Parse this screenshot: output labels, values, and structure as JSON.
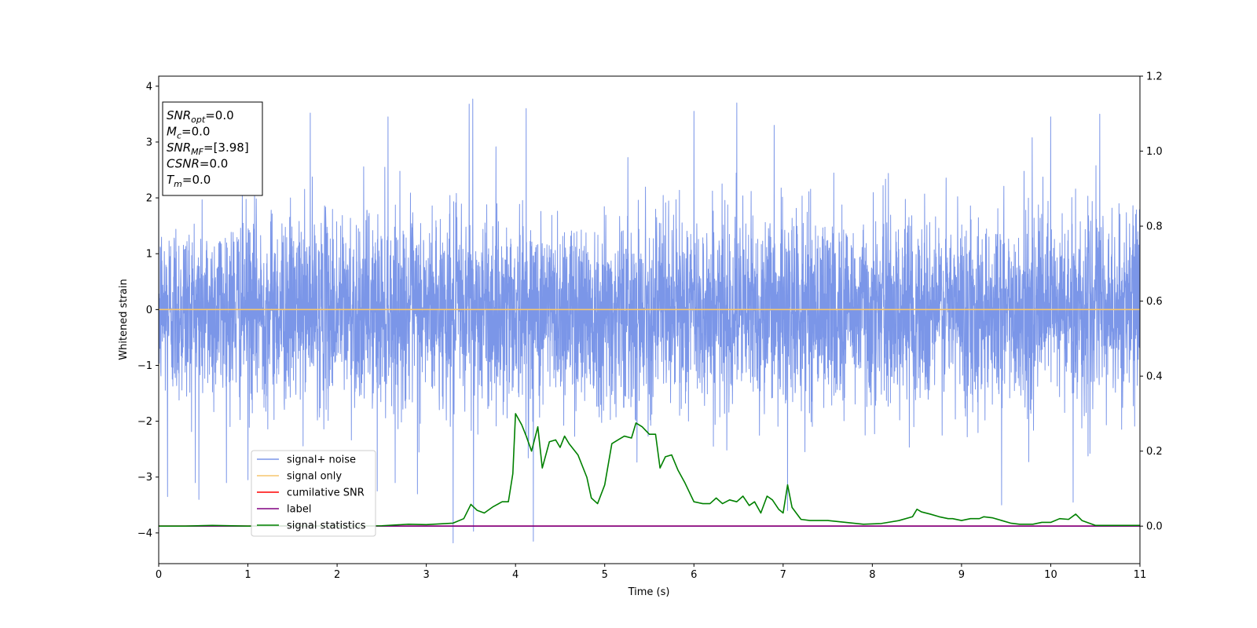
{
  "chart_data": {
    "type": "line",
    "xlabel": "Time (s)",
    "ylabel": "Whitened strain",
    "xlim": [
      0,
      11
    ],
    "ylim": [
      -4.55,
      4.18
    ],
    "y2lim": [
      -0.1,
      1.2
    ],
    "x_ticks": [
      "0",
      "1",
      "2",
      "3",
      "4",
      "5",
      "6",
      "7",
      "8",
      "9",
      "10",
      "11"
    ],
    "y_ticks": [
      "−4",
      "−3",
      "−2",
      "−1",
      "0",
      "1",
      "2",
      "3",
      "4"
    ],
    "y2_ticks": [
      "0.0",
      "0.2",
      "0.4",
      "0.6",
      "0.8",
      "1.0",
      "1.2"
    ],
    "grid": false,
    "legend_position": "lower-left",
    "info_box": {
      "lines": [
        {
          "main": "SNR",
          "sub": "opt",
          "value": "=0.0"
        },
        {
          "main": "M",
          "sub": "c",
          "value": "=0.0"
        },
        {
          "main": "SNR",
          "sub": "MF",
          "value": "=[3.98]"
        },
        {
          "main": "CSNR",
          "sub": "",
          "value": "=0.0"
        },
        {
          "main": "T",
          "sub": "m",
          "value": "=0.0"
        }
      ]
    },
    "series": [
      {
        "name": "signal+ noise",
        "color": "#7b96e8",
        "axis": "left",
        "description": "whitened noise, approx zero-mean, amplitude mostly within ±2.5 with spikes to ±3.8",
        "spikes": [
          {
            "x": 0.1,
            "y": -3.35
          },
          {
            "x": 0.45,
            "y": -3.4
          },
          {
            "x": 1.0,
            "y": -3.05
          },
          {
            "x": 1.7,
            "y": 3.52
          },
          {
            "x": 2.45,
            "y": -3.25
          },
          {
            "x": 2.57,
            "y": 3.45
          },
          {
            "x": 2.9,
            "y": -3.3
          },
          {
            "x": 3.3,
            "y": -4.18
          },
          {
            "x": 3.48,
            "y": 3.68
          },
          {
            "x": 3.52,
            "y": 3.77
          },
          {
            "x": 3.53,
            "y": -3.97
          },
          {
            "x": 4.2,
            "y": -4.15
          },
          {
            "x": 4.12,
            "y": 3.6
          },
          {
            "x": 6.0,
            "y": 3.55
          },
          {
            "x": 6.48,
            "y": 3.7
          },
          {
            "x": 6.9,
            "y": 3.3
          },
          {
            "x": 7.05,
            "y": -3.6
          },
          {
            "x": 9.45,
            "y": -3.5
          },
          {
            "x": 10.0,
            "y": 3.45
          },
          {
            "x": 10.25,
            "y": -3.45
          },
          {
            "x": 10.55,
            "y": 3.5
          }
        ]
      },
      {
        "name": "signal only",
        "color": "#f5c66f",
        "axis": "left",
        "x": [
          0,
          11
        ],
        "y": [
          0,
          0
        ]
      },
      {
        "name": "cumilative SNR",
        "color": "#ff0000",
        "axis": "right",
        "x": [
          0,
          11
        ],
        "y": [
          0,
          0
        ]
      },
      {
        "name": "label",
        "color": "#800080",
        "axis": "right",
        "x": [
          0,
          11
        ],
        "y": [
          0,
          0
        ]
      },
      {
        "name": "signal statistics",
        "color": "#008000",
        "axis": "right",
        "x": [
          0,
          0.3,
          0.6,
          1.0,
          1.5,
          2.0,
          2.5,
          2.8,
          3.0,
          3.3,
          3.42,
          3.5,
          3.57,
          3.65,
          3.75,
          3.85,
          3.92,
          3.97,
          4.0,
          4.07,
          4.12,
          4.18,
          4.25,
          4.3,
          4.38,
          4.45,
          4.5,
          4.55,
          4.6,
          4.7,
          4.8,
          4.85,
          4.92,
          5.0,
          5.08,
          5.15,
          5.22,
          5.3,
          5.35,
          5.42,
          5.5,
          5.57,
          5.62,
          5.68,
          5.75,
          5.82,
          5.9,
          6.0,
          6.1,
          6.18,
          6.25,
          6.32,
          6.4,
          6.48,
          6.55,
          6.62,
          6.68,
          6.75,
          6.82,
          6.88,
          6.95,
          7.0,
          7.05,
          7.1,
          7.2,
          7.3,
          7.5,
          7.7,
          7.9,
          8.1,
          8.3,
          8.45,
          8.5,
          8.55,
          8.65,
          8.75,
          8.85,
          8.9,
          9.0,
          9.1,
          9.2,
          9.25,
          9.35,
          9.45,
          9.55,
          9.65,
          9.8,
          9.9,
          10.0,
          10.1,
          10.2,
          10.28,
          10.35,
          10.5,
          10.7,
          11.0
        ],
        "y": [
          0.0,
          0.0,
          0.002,
          0.0,
          0.001,
          0.0,
          0.001,
          0.005,
          0.004,
          0.008,
          0.02,
          0.058,
          0.042,
          0.035,
          0.052,
          0.065,
          0.065,
          0.14,
          0.3,
          0.27,
          0.24,
          0.2,
          0.265,
          0.155,
          0.225,
          0.23,
          0.21,
          0.24,
          0.22,
          0.19,
          0.13,
          0.075,
          0.06,
          0.11,
          0.22,
          0.23,
          0.24,
          0.235,
          0.275,
          0.265,
          0.245,
          0.245,
          0.155,
          0.185,
          0.19,
          0.15,
          0.115,
          0.065,
          0.06,
          0.06,
          0.075,
          0.06,
          0.07,
          0.065,
          0.08,
          0.055,
          0.065,
          0.035,
          0.08,
          0.07,
          0.045,
          0.035,
          0.11,
          0.05,
          0.018,
          0.015,
          0.015,
          0.01,
          0.005,
          0.007,
          0.015,
          0.025,
          0.045,
          0.038,
          0.032,
          0.025,
          0.02,
          0.02,
          0.015,
          0.02,
          0.02,
          0.025,
          0.022,
          0.015,
          0.008,
          0.005,
          0.005,
          0.01,
          0.01,
          0.02,
          0.018,
          0.032,
          0.015,
          0.002,
          0.002,
          0.002
        ]
      }
    ]
  }
}
